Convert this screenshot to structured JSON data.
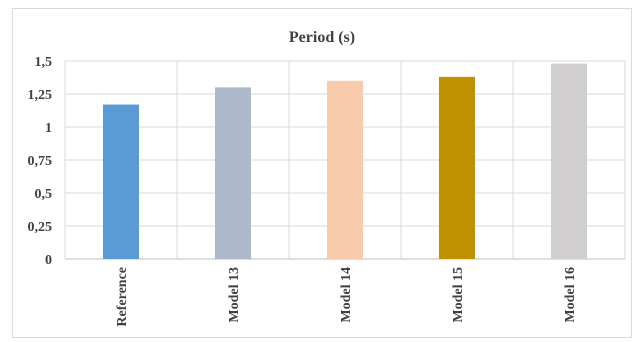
{
  "chart_data": {
    "type": "bar",
    "title": "Period (s)",
    "xlabel": "",
    "ylabel": "",
    "categories": [
      "Reference",
      "Model 13",
      "Model 14",
      "Model 15",
      "Model 16"
    ],
    "values": [
      1.17,
      1.3,
      1.35,
      1.38,
      1.48
    ],
    "colors": [
      "#5b9bd5",
      "#adb9ca",
      "#f8cbad",
      "#bf9000",
      "#d0cece"
    ],
    "ylim": [
      0,
      1.5
    ],
    "yticks": [
      "0",
      "0,25",
      "0,5",
      "0,75",
      "1",
      "1,25",
      "1,5"
    ],
    "grid": true,
    "legend": "none"
  }
}
